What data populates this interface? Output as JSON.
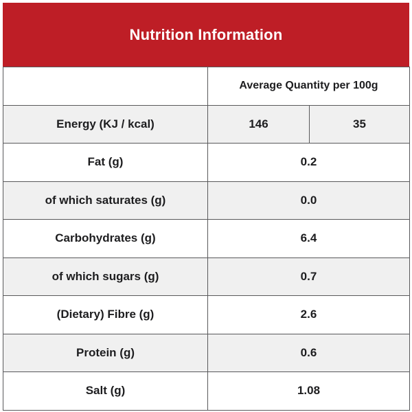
{
  "header": {
    "title": "Nutrition Information",
    "background_color": "#be1e26",
    "text_color": "#ffffff"
  },
  "table": {
    "column_header": "Average Quantity per 100g",
    "rows": [
      {
        "label": "Energy (KJ / kcal)",
        "values": [
          "146",
          "35"
        ],
        "shaded": true
      },
      {
        "label": "Fat (g)",
        "values": [
          "0.2"
        ],
        "shaded": false
      },
      {
        "label": "of which saturates (g)",
        "values": [
          "0.0"
        ],
        "shaded": true
      },
      {
        "label": "Carbohydrates (g)",
        "values": [
          "6.4"
        ],
        "shaded": false
      },
      {
        "label": "of which sugars (g)",
        "values": [
          "0.7"
        ],
        "shaded": true
      },
      {
        "label": "(Dietary) Fibre (g)",
        "values": [
          "2.6"
        ],
        "shaded": false
      },
      {
        "label": "Protein (g)",
        "values": [
          "0.6"
        ],
        "shaded": true
      },
      {
        "label": "Salt (g)",
        "values": [
          "1.08"
        ],
        "shaded": false
      }
    ],
    "colors": {
      "shaded_row": "#f0f0f0",
      "border": "#58585a",
      "text": "#1d1d1f"
    }
  }
}
